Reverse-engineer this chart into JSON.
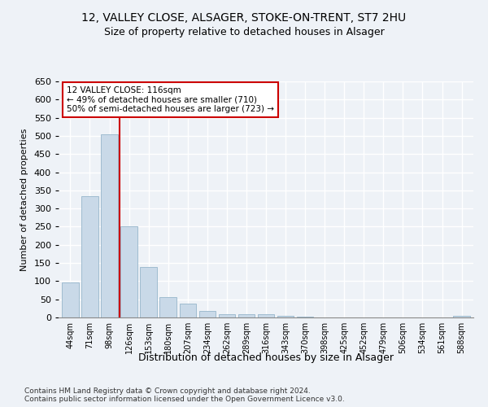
{
  "title_line1": "12, VALLEY CLOSE, ALSAGER, STOKE-ON-TRENT, ST7 2HU",
  "title_line2": "Size of property relative to detached houses in Alsager",
  "xlabel": "Distribution of detached houses by size in Alsager",
  "ylabel": "Number of detached properties",
  "categories": [
    "44sqm",
    "71sqm",
    "98sqm",
    "126sqm",
    "153sqm",
    "180sqm",
    "207sqm",
    "234sqm",
    "262sqm",
    "289sqm",
    "316sqm",
    "343sqm",
    "370sqm",
    "398sqm",
    "425sqm",
    "452sqm",
    "479sqm",
    "506sqm",
    "534sqm",
    "561sqm",
    "588sqm"
  ],
  "values": [
    97,
    333,
    505,
    252,
    138,
    55,
    37,
    18,
    8,
    10,
    10,
    4,
    2,
    1,
    1,
    1,
    1,
    1,
    1,
    1,
    4
  ],
  "bar_color": "#c9d9e8",
  "bar_edge_color": "#a0bcd0",
  "vline_x": 2.5,
  "vline_color": "#cc0000",
  "annotation_line1": "12 VALLEY CLOSE: 116sqm",
  "annotation_line2": "← 49% of detached houses are smaller (710)",
  "annotation_line3": "50% of semi-detached houses are larger (723) →",
  "annotation_box_color": "#cc0000",
  "ylim": [
    0,
    650
  ],
  "yticks": [
    0,
    50,
    100,
    150,
    200,
    250,
    300,
    350,
    400,
    450,
    500,
    550,
    600,
    650
  ],
  "footer_line1": "Contains HM Land Registry data © Crown copyright and database right 2024.",
  "footer_line2": "Contains public sector information licensed under the Open Government Licence v3.0.",
  "background_color": "#eef2f7",
  "grid_color": "#ffffff"
}
